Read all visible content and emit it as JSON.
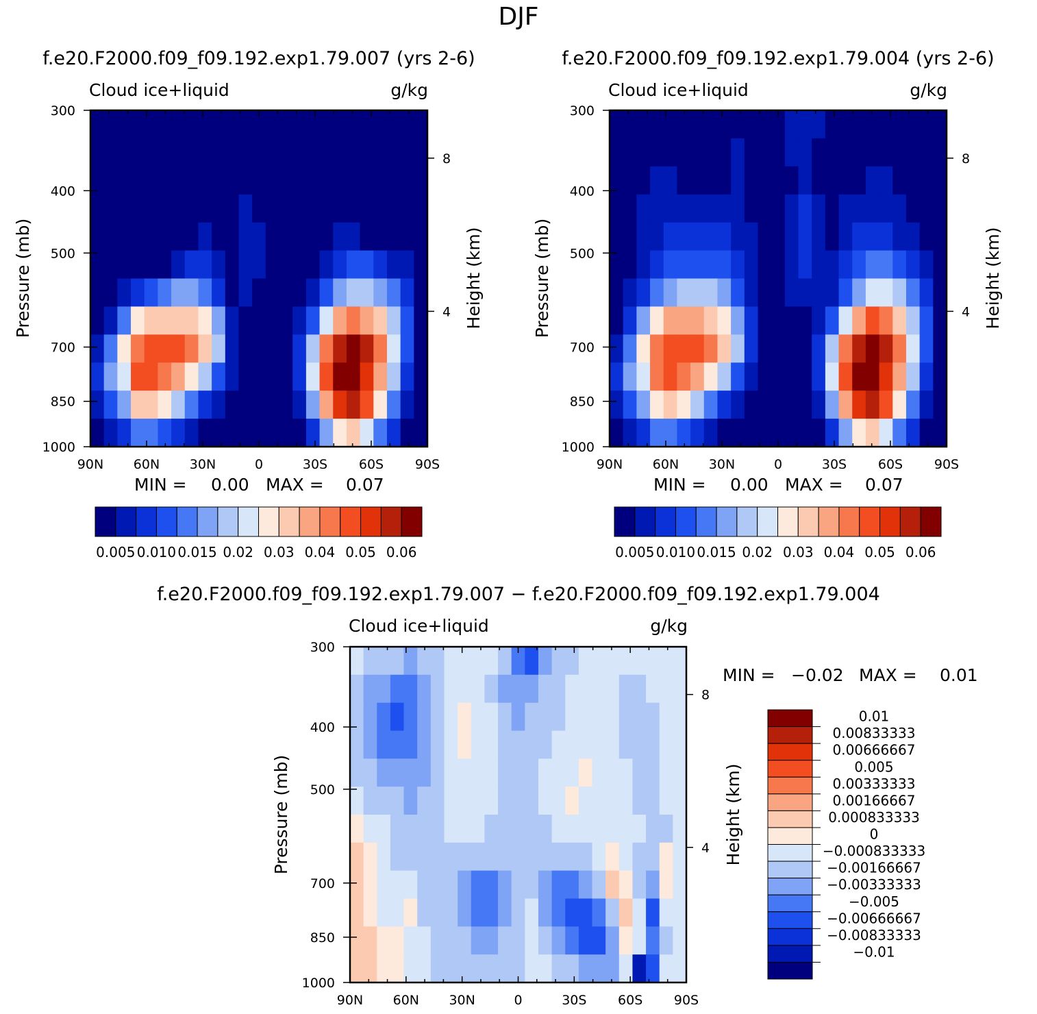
{
  "figure_title": "DJF",
  "chart_data": [
    {
      "type": "heatmap",
      "title": "f.e20.F2000.f09_f09.192.exp1.79.007 (yrs 2-6)",
      "left_label": "Cloud ice+liquid",
      "right_label": "g/kg",
      "xlabel": "",
      "ylabel": "Pressure (mb)",
      "y2label": "Height (km)",
      "x_ticks": [
        "90N",
        "60N",
        "30N",
        "0",
        "30S",
        "60S",
        "90S"
      ],
      "y_ticks": [
        "300",
        "400",
        "500",
        "700",
        "850",
        "1000"
      ],
      "y2_ticks": [
        "8",
        "4"
      ],
      "min_label": "MIN =",
      "min_value": "0.00",
      "max_label": "MAX =",
      "max_value": "0.07",
      "colorbar_labels": [
        "0.005",
        "0.010",
        "0.015",
        "0.02",
        "0.03",
        "0.04",
        "0.05",
        "0.06"
      ],
      "colorbar_colors": [
        "#00007f",
        "#0019b3",
        "#0a32d8",
        "#1e50f0",
        "#4678f5",
        "#80a4f5",
        "#b0c8f5",
        "#d8e6fa",
        "#fdeadc",
        "#fccab0",
        "#f9a582",
        "#f7784c",
        "#f34e22",
        "#e1320a",
        "#b4200a",
        "#820000"
      ],
      "field": [
        [
          0,
          0,
          0,
          0,
          0,
          0,
          0,
          0,
          0,
          0,
          0,
          0,
          0,
          0,
          0,
          0,
          0,
          0,
          0,
          0,
          0,
          0,
          0,
          0,
          0
        ],
        [
          0,
          0,
          0,
          0,
          0,
          0,
          0,
          0,
          0,
          0,
          0,
          0,
          0,
          0,
          0,
          0,
          0,
          0,
          0,
          0,
          0,
          0,
          0,
          0,
          0
        ],
        [
          0,
          0,
          0,
          0,
          0,
          0,
          0,
          0,
          0,
          0,
          0,
          0,
          0,
          0,
          0,
          0,
          0,
          0,
          0,
          0,
          0,
          0,
          0,
          0,
          0
        ],
        [
          0,
          0,
          0,
          0,
          0,
          0,
          0,
          0,
          0,
          0,
          0,
          1,
          0,
          0,
          0,
          0,
          0,
          0,
          0,
          0,
          0,
          0,
          0,
          0,
          0
        ],
        [
          0,
          0,
          0,
          0,
          0,
          0,
          0,
          0,
          1,
          0,
          0,
          1,
          1,
          0,
          0,
          0,
          0,
          0,
          1,
          1,
          0,
          0,
          0,
          0,
          0
        ],
        [
          0,
          0,
          0,
          0,
          0,
          0,
          1,
          2,
          2,
          1,
          0,
          1,
          1,
          0,
          0,
          0,
          0,
          1,
          2,
          3,
          3,
          2,
          1,
          1,
          0
        ],
        [
          0,
          0,
          1,
          2,
          3,
          4,
          5,
          5,
          4,
          2,
          0,
          1,
          0,
          0,
          0,
          0,
          1,
          3,
          5,
          6,
          6,
          5,
          4,
          2,
          0
        ],
        [
          0,
          1,
          4,
          8,
          9,
          9,
          9,
          9,
          8,
          5,
          1,
          0,
          0,
          0,
          0,
          1,
          3,
          7,
          10,
          11,
          10,
          9,
          6,
          3,
          0
        ],
        [
          1,
          4,
          8,
          11,
          12,
          12,
          12,
          11,
          9,
          6,
          1,
          0,
          0,
          0,
          0,
          2,
          6,
          11,
          14,
          15,
          14,
          11,
          7,
          3,
          0
        ],
        [
          2,
          5,
          7,
          12,
          12,
          11,
          10,
          8,
          6,
          3,
          1,
          0,
          0,
          0,
          0,
          2,
          7,
          12,
          15,
          15,
          13,
          10,
          6,
          2,
          0
        ],
        [
          1,
          3,
          5,
          9,
          9,
          8,
          6,
          4,
          2,
          1,
          0,
          0,
          0,
          0,
          0,
          1,
          5,
          10,
          13,
          14,
          12,
          8,
          4,
          1,
          0
        ],
        [
          0,
          1,
          2,
          4,
          4,
          3,
          2,
          1,
          0,
          0,
          0,
          0,
          0,
          0,
          0,
          0,
          2,
          5,
          8,
          9,
          7,
          4,
          2,
          0,
          0
        ]
      ]
    },
    {
      "type": "heatmap",
      "title": "f.e20.F2000.f09_f09.192.exp1.79.004 (yrs 2-6)",
      "left_label": "Cloud ice+liquid",
      "right_label": "g/kg",
      "xlabel": "",
      "ylabel": "Pressure (mb)",
      "y2label": "Height (km)",
      "x_ticks": [
        "90N",
        "60N",
        "30N",
        "0",
        "30S",
        "60S",
        "90S"
      ],
      "y_ticks": [
        "300",
        "400",
        "500",
        "700",
        "850",
        "1000"
      ],
      "y2_ticks": [
        "8",
        "4"
      ],
      "min_label": "MIN =",
      "min_value": "0.00",
      "max_label": "MAX =",
      "max_value": "0.07",
      "colorbar_labels": [
        "0.005",
        "0.010",
        "0.015",
        "0.02",
        "0.03",
        "0.04",
        "0.05",
        "0.06"
      ],
      "colorbar_colors": [
        "#00007f",
        "#0019b3",
        "#0a32d8",
        "#1e50f0",
        "#4678f5",
        "#80a4f5",
        "#b0c8f5",
        "#d8e6fa",
        "#fdeadc",
        "#fccab0",
        "#f9a582",
        "#f7784c",
        "#f34e22",
        "#e1320a",
        "#b4200a",
        "#820000"
      ],
      "field": [
        [
          0,
          0,
          0,
          0,
          0,
          0,
          0,
          0,
          0,
          0,
          0,
          0,
          0,
          1,
          1,
          1,
          0,
          0,
          0,
          0,
          0,
          0,
          0,
          0,
          0
        ],
        [
          0,
          0,
          0,
          0,
          0,
          0,
          0,
          0,
          0,
          1,
          0,
          0,
          0,
          1,
          1,
          0,
          0,
          0,
          0,
          0,
          0,
          0,
          0,
          0,
          0
        ],
        [
          0,
          0,
          0,
          1,
          1,
          0,
          0,
          0,
          0,
          1,
          0,
          0,
          0,
          0,
          1,
          0,
          0,
          0,
          0,
          1,
          1,
          0,
          0,
          0,
          0
        ],
        [
          0,
          0,
          1,
          1,
          1,
          1,
          1,
          1,
          1,
          1,
          0,
          0,
          0,
          1,
          2,
          1,
          0,
          1,
          1,
          1,
          1,
          1,
          0,
          0,
          0
        ],
        [
          0,
          0,
          1,
          1,
          2,
          2,
          2,
          2,
          2,
          1,
          1,
          0,
          0,
          1,
          2,
          1,
          0,
          1,
          2,
          2,
          2,
          1,
          1,
          0,
          0
        ],
        [
          0,
          0,
          1,
          2,
          3,
          3,
          3,
          3,
          3,
          2,
          1,
          0,
          0,
          1,
          2,
          1,
          1,
          2,
          3,
          4,
          4,
          3,
          2,
          1,
          0
        ],
        [
          0,
          1,
          2,
          4,
          5,
          6,
          6,
          6,
          5,
          3,
          1,
          0,
          0,
          1,
          1,
          1,
          1,
          3,
          5,
          7,
          7,
          6,
          4,
          2,
          0
        ],
        [
          0,
          2,
          5,
          8,
          10,
          10,
          10,
          9,
          8,
          5,
          2,
          0,
          0,
          0,
          0,
          1,
          3,
          7,
          10,
          12,
          11,
          9,
          6,
          3,
          0
        ],
        [
          1,
          4,
          8,
          11,
          12,
          12,
          12,
          11,
          9,
          6,
          2,
          0,
          0,
          0,
          0,
          2,
          6,
          11,
          14,
          15,
          14,
          11,
          7,
          3,
          0
        ],
        [
          2,
          5,
          7,
          11,
          12,
          11,
          10,
          8,
          6,
          3,
          1,
          0,
          0,
          0,
          0,
          2,
          7,
          12,
          15,
          15,
          13,
          10,
          6,
          2,
          0
        ],
        [
          1,
          3,
          5,
          8,
          9,
          8,
          6,
          4,
          2,
          1,
          0,
          0,
          0,
          0,
          0,
          1,
          5,
          10,
          13,
          14,
          12,
          8,
          4,
          1,
          0
        ],
        [
          0,
          1,
          2,
          4,
          4,
          3,
          2,
          1,
          0,
          0,
          0,
          0,
          0,
          0,
          0,
          0,
          2,
          5,
          8,
          9,
          7,
          4,
          2,
          0,
          0
        ]
      ]
    },
    {
      "type": "heatmap",
      "title": "f.e20.F2000.f09_f09.192.exp1.79.007 − f.e20.F2000.f09_f09.192.exp1.79.004",
      "left_label": "Cloud ice+liquid",
      "right_label": "g/kg",
      "xlabel": "",
      "ylabel": "Pressure (mb)",
      "y2label": "Height (km)",
      "x_ticks": [
        "90N",
        "60N",
        "30N",
        "0",
        "30S",
        "60S",
        "90S"
      ],
      "y_ticks": [
        "300",
        "400",
        "500",
        "700",
        "850",
        "1000"
      ],
      "y2_ticks": [
        "8",
        "4"
      ],
      "min_label": "MIN =",
      "min_value": "−0.02",
      "max_label": "MAX =",
      "max_value": "0.01",
      "colorbar_labels": [
        "0.01",
        "0.00833333",
        "0.00666667",
        "0.005",
        "0.00333333",
        "0.00166667",
        "0.000833333",
        "0",
        "−0.000833333",
        "−0.00166667",
        "−0.00333333",
        "−0.005",
        "−0.00666667",
        "−0.00833333",
        "−0.01"
      ],
      "colorbar_colors": [
        "#820000",
        "#b4200a",
        "#e1320a",
        "#f34e22",
        "#f7784c",
        "#f9a582",
        "#fccab0",
        "#fdeadc",
        "#d8e6fa",
        "#b0c8f5",
        "#80a4f5",
        "#4678f5",
        "#1e50f0",
        "#0a32d8",
        "#0019b3",
        "#00007f"
      ],
      "field": [
        [
          8,
          9,
          9,
          9,
          10,
          9,
          9,
          8,
          8,
          8,
          8,
          9,
          11,
          12,
          10,
          9,
          9,
          8,
          8,
          8,
          8,
          8,
          8,
          8,
          8
        ],
        [
          9,
          10,
          10,
          11,
          11,
          10,
          9,
          8,
          8,
          8,
          9,
          10,
          10,
          10,
          9,
          9,
          8,
          8,
          8,
          8,
          9,
          9,
          8,
          8,
          8
        ],
        [
          9,
          10,
          11,
          12,
          11,
          10,
          9,
          8,
          7,
          8,
          8,
          9,
          10,
          9,
          9,
          9,
          8,
          8,
          8,
          8,
          9,
          9,
          9,
          8,
          8
        ],
        [
          9,
          10,
          11,
          11,
          11,
          10,
          9,
          8,
          7,
          8,
          8,
          9,
          9,
          9,
          9,
          8,
          8,
          8,
          8,
          8,
          9,
          9,
          9,
          8,
          8
        ],
        [
          9,
          9,
          10,
          10,
          10,
          10,
          9,
          8,
          8,
          8,
          8,
          9,
          9,
          9,
          8,
          8,
          8,
          7,
          8,
          8,
          8,
          9,
          9,
          8,
          8
        ],
        [
          8,
          9,
          9,
          9,
          10,
          9,
          9,
          8,
          8,
          8,
          8,
          9,
          9,
          9,
          8,
          8,
          7,
          8,
          8,
          8,
          8,
          9,
          9,
          8,
          8
        ],
        [
          7,
          8,
          8,
          9,
          9,
          9,
          9,
          8,
          8,
          8,
          9,
          9,
          9,
          9,
          9,
          8,
          8,
          8,
          8,
          8,
          8,
          8,
          9,
          9,
          8
        ],
        [
          6,
          7,
          8,
          9,
          9,
          9,
          9,
          9,
          9,
          9,
          9,
          9,
          9,
          9,
          9,
          9,
          9,
          9,
          8,
          7,
          8,
          9,
          9,
          7,
          8
        ],
        [
          6,
          7,
          8,
          8,
          8,
          9,
          9,
          9,
          10,
          11,
          11,
          10,
          9,
          9,
          10,
          11,
          11,
          10,
          9,
          6,
          7,
          9,
          10,
          7,
          8
        ],
        [
          6,
          7,
          8,
          8,
          7,
          9,
          9,
          9,
          10,
          11,
          11,
          10,
          9,
          8,
          10,
          11,
          12,
          12,
          11,
          9,
          6,
          8,
          12,
          8,
          8
        ],
        [
          6,
          6,
          7,
          7,
          8,
          8,
          9,
          9,
          9,
          10,
          10,
          9,
          9,
          8,
          9,
          10,
          11,
          12,
          12,
          10,
          7,
          8,
          11,
          9,
          8
        ],
        [
          6,
          6,
          7,
          7,
          8,
          8,
          9,
          9,
          9,
          9,
          9,
          9,
          9,
          8,
          8,
          9,
          9,
          10,
          10,
          10,
          8,
          14,
          12,
          8,
          8
        ]
      ]
    }
  ]
}
